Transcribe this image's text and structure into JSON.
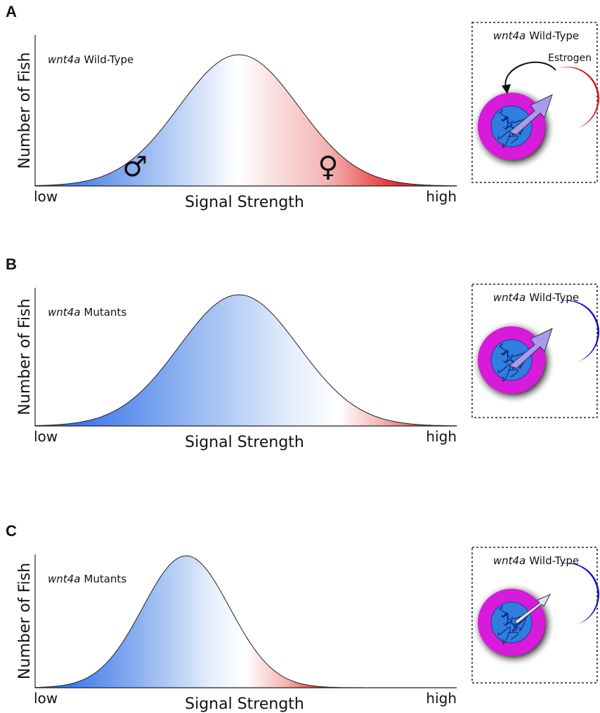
{
  "panels": [
    {
      "letter": "A",
      "curve_label": {
        "gene": "wnt4a",
        "text": "Wild-Type"
      },
      "y_axis": "Number of Fish",
      "x_axis": "Signal Strength",
      "low": "low",
      "high": "high",
      "male_symbol": "♂",
      "female_symbol": "♀",
      "inset": {
        "gene": "wnt4a",
        "text": "Wild-Type",
        "hormone": "Estrogen"
      }
    },
    {
      "letter": "B",
      "curve_label": {
        "gene": "wnt4a",
        "text": "Mutants"
      },
      "y_axis": "Number of Fish",
      "x_axis": "Signal Strength",
      "low": "low",
      "high": "high",
      "inset": {
        "gene": "wnt4a",
        "text": "Wild-Type"
      }
    },
    {
      "letter": "C",
      "curve_label": {
        "gene": "wnt4a",
        "text": "Mutants"
      },
      "y_axis": "Number of Fish",
      "x_axis": "Signal Strength",
      "low": "low",
      "high": "high",
      "inset": {
        "gene": "wnt4a",
        "text": "Wild-Type"
      }
    }
  ]
}
